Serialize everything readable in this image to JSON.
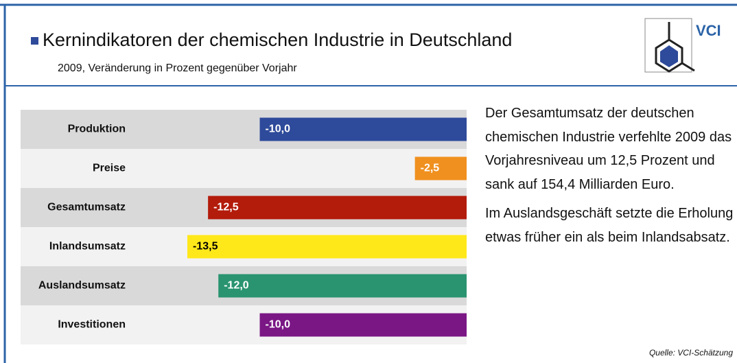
{
  "chart_data": {
    "type": "bar",
    "orientation": "horizontal",
    "title": "Kernindikatoren der chemischen Industrie in Deutschland",
    "subtitle": "2009, Veränderung in Prozent gegenüber Vorjahr",
    "logo_text": "VCI",
    "categories": [
      "Produktion",
      "Preise",
      "Gesamtumsatz",
      "Inlandsumsatz",
      "Auslandsumsatz",
      "Investitionen"
    ],
    "values": [
      -10,
      -2.5,
      -12.5,
      -13.5,
      -12,
      -10
    ],
    "value_labels": [
      "-10,0",
      "-2,5",
      "-12,5",
      "-13,5",
      "-12,0",
      "-10,0"
    ],
    "colors": [
      "#2e4a9a",
      "#f0901e",
      "#b31b0b",
      "#ffe81a",
      "#2a9470",
      "#7a1785"
    ],
    "value_label_colors": [
      "#ffffff",
      "#ffffff",
      "#ffffff",
      "#000000",
      "#ffffff",
      "#ffffff"
    ],
    "xlim": [
      -13.5,
      0
    ],
    "description": [
      "Der Gesamtumsatz der deutschen chemischen Industrie verfehlte 2009 das Vorjahresniveau um 12,5 Prozent und sank auf 154,4 Milliarden Euro.",
      "Im Auslandsgeschäft setzte die Erholung etwas früher ein als beim Inlandsabsatz."
    ],
    "source": "Quelle: VCI-Schätzung"
  }
}
